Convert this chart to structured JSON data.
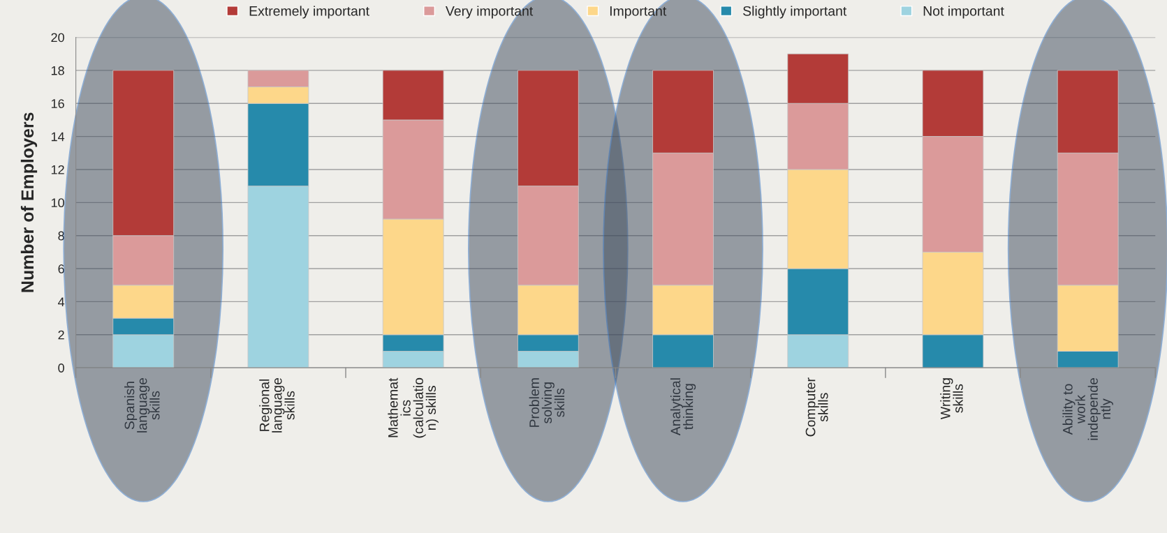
{
  "chart_data": {
    "type": "bar",
    "stacked": true,
    "ylabel": "Number of Employers",
    "categories": [
      "Spanish\nlanguage\nskills",
      "Regional\nlanguage\nskills",
      "Mathemat\nics\n(calculatio\nn) skills",
      "Problem\nsolving\nskills",
      "Analytical\nthinking",
      "Computer\nskills",
      "Writing\nskills",
      "Ability to\nwork\nindepende\nntly"
    ],
    "series": [
      {
        "name": "Not important",
        "color": "#9ed3e0",
        "values": [
          2,
          11,
          1,
          1,
          0,
          2,
          0,
          0
        ]
      },
      {
        "name": "Slightly important",
        "color": "#268aab",
        "values": [
          1,
          5,
          1,
          1,
          2,
          4,
          2,
          1
        ]
      },
      {
        "name": "Important",
        "color": "#fdd78a",
        "values": [
          2,
          1,
          7,
          3,
          3,
          6,
          5,
          4
        ]
      },
      {
        "name": "Very important",
        "color": "#db9a9a",
        "values": [
          3,
          1,
          6,
          6,
          8,
          4,
          7,
          8
        ]
      },
      {
        "name": "Extremely important",
        "color": "#b33b38",
        "values": [
          10,
          0,
          3,
          7,
          5,
          3,
          4,
          5
        ]
      }
    ],
    "ylim": [
      0,
      20
    ],
    "yticks": [
      0,
      2,
      4,
      6,
      8,
      10,
      12,
      14,
      16,
      18,
      20
    ],
    "grid": "y",
    "legend": "top"
  }
}
